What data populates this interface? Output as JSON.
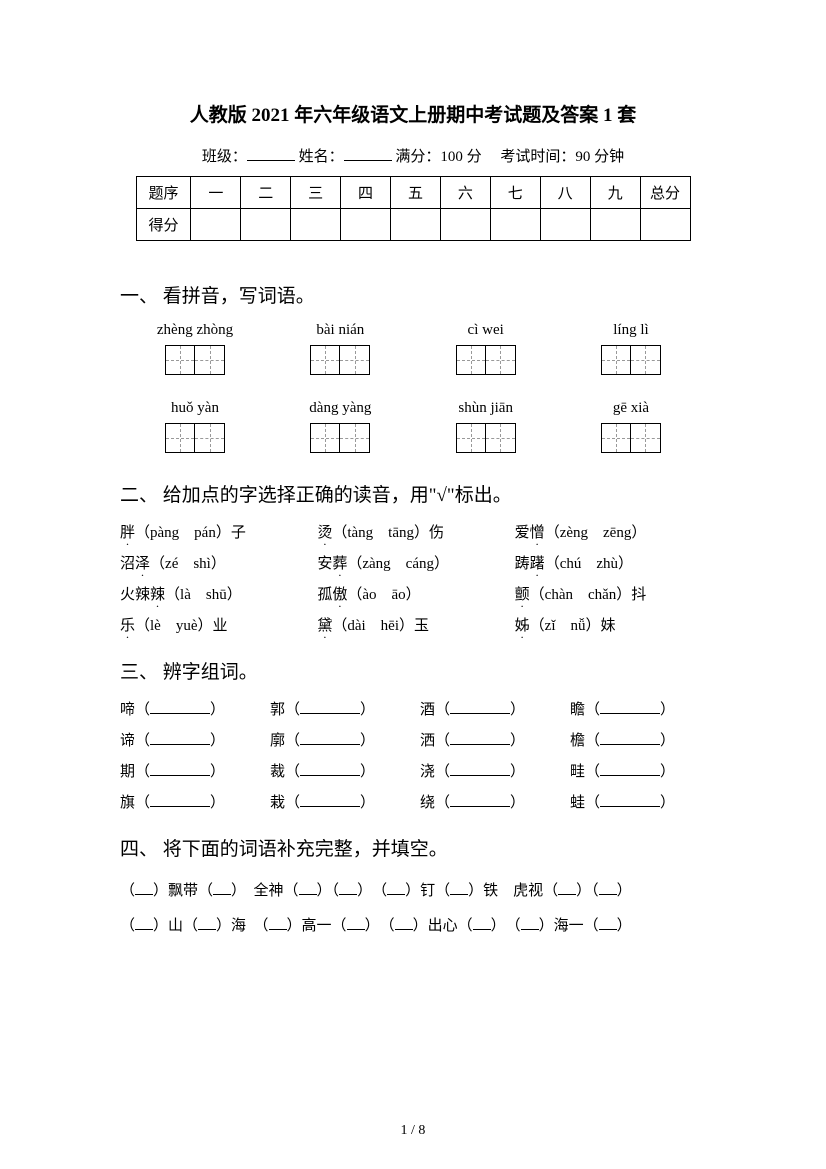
{
  "title": "人教版 2021 年六年级语文上册期中考试题及答案 1 套",
  "info": {
    "class_label": "班级：",
    "name_label": "姓名：",
    "full_score_label": "满分：",
    "full_score_value": "100 分",
    "time_label": "考试时间：",
    "time_value": "90 分钟"
  },
  "score_table": {
    "headers": [
      "题序",
      "一",
      "二",
      "三",
      "四",
      "五",
      "六",
      "七",
      "八",
      "九",
      "总分"
    ],
    "row2_label": "得分"
  },
  "section1": {
    "heading": "一、 看拼音，写词语。",
    "row1": [
      "zhèng zhòng",
      "bài nián",
      "cì wei",
      "líng lì"
    ],
    "row2": [
      "huǒ yàn",
      "dàng yàng",
      "shùn jiān",
      "gē xià"
    ]
  },
  "section2": {
    "heading": "二、 给加点的字选择正确的读音，用\"√\"标出。",
    "items": [
      {
        "char": "胖",
        "dot": true,
        "suffix": "（pàng　pán）子"
      },
      {
        "char": "烫",
        "dot": true,
        "suffix": "（tàng　tāng）伤"
      },
      {
        "prefix": "爱",
        "char": "憎",
        "dot": true,
        "suffix": "（zèng　zēng）"
      },
      {
        "prefix": "沼",
        "char": "泽",
        "dot": true,
        "suffix": "（zé　shì）"
      },
      {
        "prefix": "安",
        "char": "葬",
        "dot": true,
        "suffix": "（zàng　cáng）"
      },
      {
        "prefix": "踌",
        "char": "躇",
        "dot": true,
        "suffix": "（chú　zhù）"
      },
      {
        "prefix": "火辣",
        "char": "辣",
        "dot": true,
        "suffix": "（là　shū）"
      },
      {
        "prefix": "孤",
        "char": "傲",
        "dot": true,
        "suffix": "（ào　āo）"
      },
      {
        "char": "颤",
        "dot": true,
        "suffix": "（chàn　chǎn）抖"
      },
      {
        "char": "乐",
        "dot": true,
        "suffix": "（lè　yuè）业"
      },
      {
        "char": "黛",
        "dot": true,
        "suffix": "（dài　hēi）玉"
      },
      {
        "char": "姊",
        "dot": true,
        "suffix": "（zǐ　nǚ）妹"
      }
    ]
  },
  "section3": {
    "heading": "三、 辨字组词。",
    "words": [
      "啼",
      "郭",
      "酒",
      "瞻",
      "谛",
      "廓",
      "洒",
      "檐",
      "期",
      "裁",
      "浇",
      "畦",
      "旗",
      "栽",
      "绕",
      "蛙"
    ]
  },
  "section4": {
    "heading": "四、 将下面的词语补充完整，并填空。",
    "line1_parts": [
      "（",
      "）飘带（",
      "）　全神（",
      "）（",
      "）　（",
      "）钉（",
      "）铁　虎视（",
      "）（",
      "）"
    ],
    "line2_parts": [
      "（",
      "）山（",
      "）海　（",
      "）高一（",
      "）　（",
      "）出心（",
      "）　（",
      "）海一（",
      "）"
    ]
  },
  "page_number": "1 / 8"
}
